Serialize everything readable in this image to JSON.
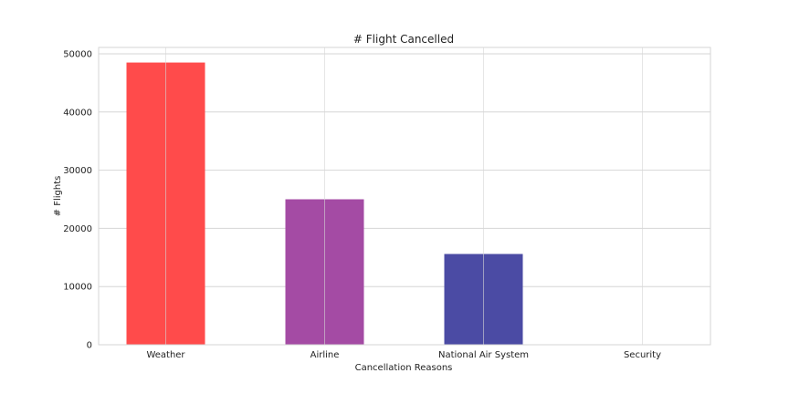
{
  "chart_data": {
    "type": "bar",
    "title": "# Flight Cancelled",
    "xlabel": "Cancellation Reasons",
    "ylabel": "# Flights",
    "categories": [
      "Weather",
      "Airline",
      "National Air System",
      "Security"
    ],
    "values": [
      48500,
      25000,
      15600,
      20
    ],
    "colors": [
      "#ff4b4b",
      "#a44ba4",
      "#4b4ba4",
      "#4b4ba4"
    ],
    "ylim": [
      0,
      50000
    ],
    "yticks": [
      0,
      10000,
      20000,
      30000,
      40000,
      50000
    ],
    "grid": true,
    "legend": "none"
  }
}
